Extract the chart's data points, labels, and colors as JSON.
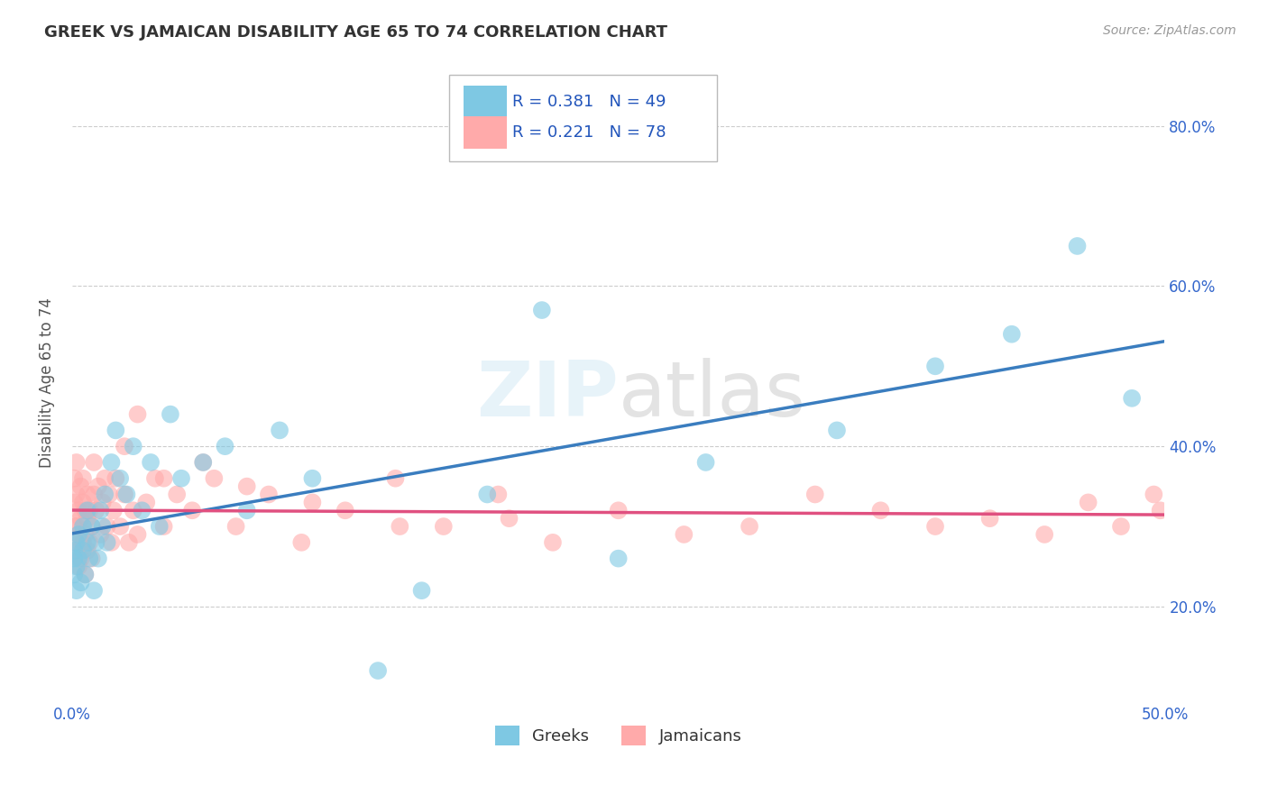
{
  "title": "GREEK VS JAMAICAN DISABILITY AGE 65 TO 74 CORRELATION CHART",
  "source": "Source: ZipAtlas.com",
  "ylabel": "Disability Age 65 to 74",
  "xlim": [
    0.0,
    0.5
  ],
  "ylim": [
    0.08,
    0.88
  ],
  "yticks": [
    0.2,
    0.4,
    0.6,
    0.8
  ],
  "ytick_labels": [
    "20.0%",
    "40.0%",
    "60.0%",
    "80.0%"
  ],
  "xticks": [
    0.0,
    0.5
  ],
  "xtick_labels": [
    "0.0%",
    "50.0%"
  ],
  "greek_color": "#7ec8e3",
  "jamaican_color": "#ffaaaa",
  "greek_line_color": "#3a7dbf",
  "jamaican_line_color": "#e05080",
  "R_greek": 0.381,
  "N_greek": 49,
  "R_jamaican": 0.221,
  "N_jamaican": 78,
  "watermark": "ZIPatlas",
  "background_color": "#ffffff",
  "grid_color": "#cccccc",
  "greek_x": [
    0.001,
    0.001,
    0.001,
    0.002,
    0.002,
    0.002,
    0.003,
    0.003,
    0.004,
    0.005,
    0.005,
    0.006,
    0.007,
    0.007,
    0.008,
    0.009,
    0.01,
    0.011,
    0.012,
    0.013,
    0.014,
    0.015,
    0.016,
    0.018,
    0.02,
    0.022,
    0.025,
    0.028,
    0.032,
    0.036,
    0.04,
    0.045,
    0.05,
    0.06,
    0.07,
    0.08,
    0.095,
    0.11,
    0.14,
    0.16,
    0.19,
    0.215,
    0.25,
    0.29,
    0.35,
    0.395,
    0.43,
    0.46,
    0.485
  ],
  "greek_y": [
    0.24,
    0.26,
    0.27,
    0.25,
    0.22,
    0.28,
    0.26,
    0.29,
    0.23,
    0.27,
    0.3,
    0.24,
    0.28,
    0.32,
    0.26,
    0.3,
    0.22,
    0.28,
    0.26,
    0.32,
    0.3,
    0.34,
    0.28,
    0.38,
    0.42,
    0.36,
    0.34,
    0.4,
    0.32,
    0.38,
    0.3,
    0.44,
    0.36,
    0.38,
    0.4,
    0.32,
    0.42,
    0.36,
    0.12,
    0.22,
    0.34,
    0.57,
    0.26,
    0.38,
    0.42,
    0.5,
    0.54,
    0.65,
    0.46
  ],
  "jamaican_x": [
    0.001,
    0.001,
    0.001,
    0.001,
    0.002,
    0.002,
    0.002,
    0.002,
    0.003,
    0.003,
    0.003,
    0.004,
    0.004,
    0.004,
    0.005,
    0.005,
    0.005,
    0.006,
    0.006,
    0.006,
    0.007,
    0.007,
    0.007,
    0.008,
    0.008,
    0.009,
    0.009,
    0.01,
    0.01,
    0.011,
    0.012,
    0.013,
    0.014,
    0.015,
    0.016,
    0.017,
    0.018,
    0.019,
    0.02,
    0.022,
    0.024,
    0.026,
    0.028,
    0.03,
    0.034,
    0.038,
    0.042,
    0.048,
    0.055,
    0.065,
    0.075,
    0.09,
    0.105,
    0.125,
    0.148,
    0.17,
    0.195,
    0.22,
    0.25,
    0.28,
    0.31,
    0.34,
    0.37,
    0.395,
    0.42,
    0.445,
    0.465,
    0.48,
    0.495,
    0.498,
    0.024,
    0.03,
    0.042,
    0.06,
    0.08,
    0.11,
    0.15,
    0.2
  ],
  "jamaican_y": [
    0.28,
    0.3,
    0.33,
    0.36,
    0.27,
    0.3,
    0.34,
    0.38,
    0.25,
    0.29,
    0.32,
    0.26,
    0.31,
    0.35,
    0.28,
    0.33,
    0.36,
    0.24,
    0.29,
    0.32,
    0.27,
    0.31,
    0.34,
    0.28,
    0.32,
    0.26,
    0.3,
    0.34,
    0.38,
    0.32,
    0.35,
    0.29,
    0.33,
    0.36,
    0.3,
    0.34,
    0.28,
    0.32,
    0.36,
    0.3,
    0.34,
    0.28,
    0.32,
    0.29,
    0.33,
    0.36,
    0.3,
    0.34,
    0.32,
    0.36,
    0.3,
    0.34,
    0.28,
    0.32,
    0.36,
    0.3,
    0.34,
    0.28,
    0.32,
    0.29,
    0.3,
    0.34,
    0.32,
    0.3,
    0.31,
    0.29,
    0.33,
    0.3,
    0.34,
    0.32,
    0.4,
    0.44,
    0.36,
    0.38,
    0.35,
    0.33,
    0.3,
    0.31
  ]
}
